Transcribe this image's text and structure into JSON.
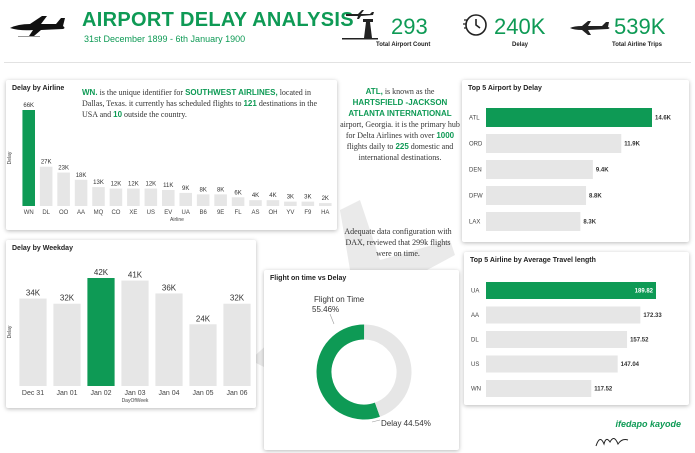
{
  "header": {
    "title": "AIRPORT DELAY ANALYSIS",
    "date_range": "31st December 1899 - 6th January 1900",
    "kpis": [
      {
        "value": "293",
        "label": "Total Airport Count",
        "icon": "airport-tower-icon"
      },
      {
        "value": "240K",
        "label": "Delay",
        "icon": "clock-icon"
      },
      {
        "value": "539K",
        "label": "Total Airline Trips",
        "icon": "airplane-icon"
      }
    ]
  },
  "notes": {
    "airline_note": {
      "code": "WN.",
      "t1": " is the unique identifier for ",
      "name": "SOUTHWEST AIRLINES,",
      "t2": " located in Dallas, Texas. it currently has scheduled flights to ",
      "n1": "121",
      "t3": " destinations in the USA and ",
      "n2": "10",
      "t4": " outside the country."
    },
    "airport_note": {
      "code": "ATL,",
      "t1": " is known as the",
      "name": "HARTSFIELD -JACKSON ATLANTA INTERNATIONAL",
      "t2": "airport, Georgia. it is the primary hub for Delta Airlines with over ",
      "n1": "1000",
      "t3": " flights daily to ",
      "n2": "225",
      "t4": " domestic and international destinations."
    },
    "dax_note": "Adequate data configuration with DAX,  reviewed that 299k flights were on time."
  },
  "signature": {
    "name": "ifedapo kayode"
  },
  "colors": {
    "accent": "#0e9a55",
    "bar": "#e6e6e6",
    "text": "#333333"
  },
  "chart_data": [
    {
      "id": "delay-by-airline",
      "type": "bar",
      "title": "Delay by Airline",
      "xlabel": "Airline",
      "ylabel": "Delay",
      "categories": [
        "WN",
        "DL",
        "OO",
        "AA",
        "MQ",
        "CO",
        "XE",
        "US",
        "EV",
        "UA",
        "B6",
        "9E",
        "FL",
        "AS",
        "OH",
        "YV",
        "F9",
        "HA"
      ],
      "values": [
        66000,
        27000,
        23000,
        18000,
        13000,
        12000,
        12000,
        12000,
        11000,
        9000,
        8000,
        8000,
        6000,
        4000,
        4000,
        3000,
        3000,
        2000
      ],
      "labels": [
        "66K",
        "27K",
        "23K",
        "18K",
        "13K",
        "12K",
        "12K",
        "12K",
        "11K",
        "9K",
        "8K",
        "8K",
        "6K",
        "4K",
        "4K",
        "3K",
        "3K",
        "2K"
      ],
      "highlight": "WN"
    },
    {
      "id": "delay-by-weekday",
      "type": "bar",
      "title": "Delay by Weekday",
      "xlabel": "DayOfWeek",
      "ylabel": "Delay",
      "categories": [
        "Dec 31",
        "Jan 01",
        "Jan 02",
        "Jan 03",
        "Jan 04",
        "Jan 05",
        "Jan 06"
      ],
      "values": [
        34000,
        32000,
        42000,
        41000,
        36000,
        24000,
        32000
      ],
      "labels": [
        "34K",
        "32K",
        "42K",
        "41K",
        "36K",
        "24K",
        "32K"
      ],
      "highlight": "Jan 02"
    },
    {
      "id": "flight-ontime-vs-delay",
      "type": "pie",
      "title": "Flight on time vs Delay",
      "slices": [
        {
          "name": "Flight on Time",
          "value": 55.46,
          "label": "55.46%"
        },
        {
          "name": "Delay",
          "value": 44.54,
          "label": "44.54%"
        }
      ]
    },
    {
      "id": "top5-airport-delay",
      "type": "bar",
      "orientation": "horizontal",
      "title": "Top 5 Airport by Delay",
      "categories": [
        "ATL",
        "ORD",
        "DEN",
        "DFW",
        "LAX"
      ],
      "values": [
        14600,
        11900,
        9400,
        8800,
        8300
      ],
      "labels": [
        "14.6K",
        "11.9K",
        "9.4K",
        "8.8K",
        "8.3K"
      ],
      "highlight": "ATL"
    },
    {
      "id": "top5-airline-travel",
      "type": "bar",
      "orientation": "horizontal",
      "title": "Top 5 Airline by Average Travel length",
      "categories": [
        "UA",
        "AA",
        "DL",
        "US",
        "WN"
      ],
      "values": [
        189.82,
        172.33,
        157.52,
        147.04,
        117.52
      ],
      "labels": [
        "189.82",
        "172.33",
        "157.52",
        "147.04",
        "117.52"
      ],
      "highlight": "UA"
    }
  ]
}
